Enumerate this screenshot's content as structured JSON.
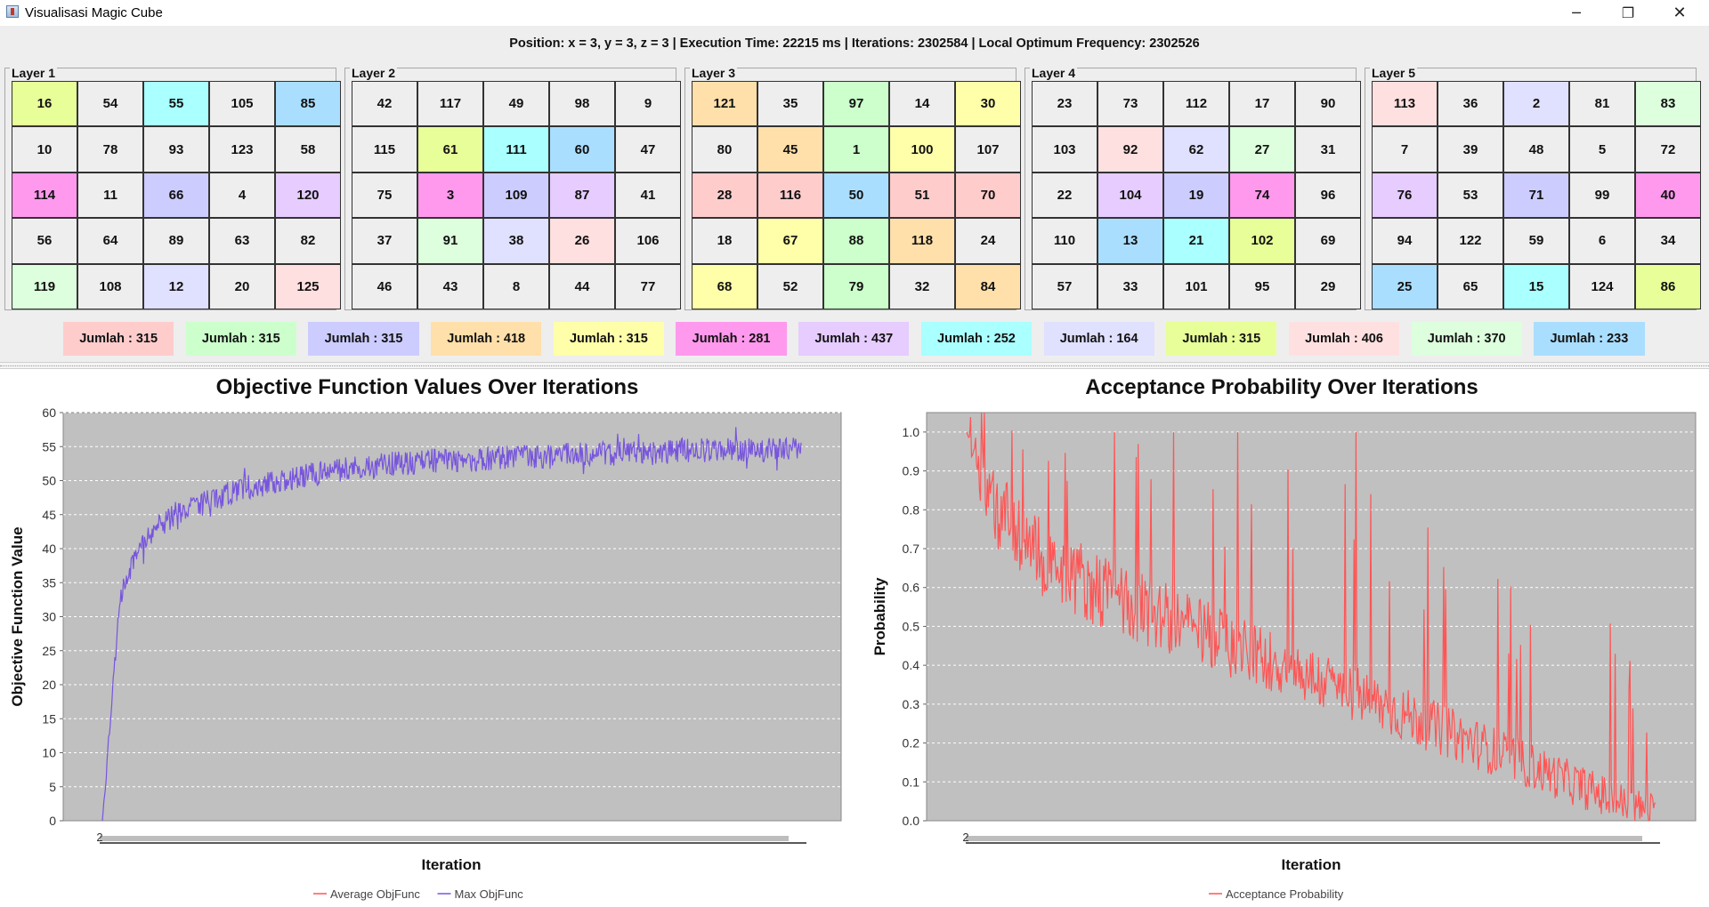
{
  "window": {
    "title": "Visualisasi Magic Cube",
    "minimize_icon": "─",
    "maximize_icon": "❐",
    "close_icon": "✕"
  },
  "status": {
    "text": "Position: x = 3, y = 3, z = 3 | Execution Time: 22215 ms | Iterations: 2302584 | Local Optimum Frequency: 2302526"
  },
  "palette": {
    "gray": "#eeeeee",
    "yellow_green": "#e8ff99",
    "cyan": "#aaffff",
    "sky": "#aadeff",
    "magenta": "#ff99ee",
    "lavender": "#ccccff",
    "violet": "#e6ccff",
    "pale_green": "#ddffdd",
    "pink": "#ffe0e0",
    "yellow": "#ffffaa",
    "orange": "#ffe0aa",
    "green": "#ccffcc",
    "red": "#ffcccc"
  },
  "layers": [
    {
      "title": "Layer 1",
      "cells": [
        {
          "v": "16",
          "c": "#e8ff99"
        },
        {
          "v": "54",
          "c": "#eeeeee"
        },
        {
          "v": "55",
          "c": "#aaffff"
        },
        {
          "v": "105",
          "c": "#eeeeee"
        },
        {
          "v": "85",
          "c": "#aadeff"
        },
        {
          "v": "10",
          "c": "#eeeeee"
        },
        {
          "v": "78",
          "c": "#eeeeee"
        },
        {
          "v": "93",
          "c": "#eeeeee"
        },
        {
          "v": "123",
          "c": "#eeeeee"
        },
        {
          "v": "58",
          "c": "#eeeeee"
        },
        {
          "v": "114",
          "c": "#ff99ee"
        },
        {
          "v": "11",
          "c": "#eeeeee"
        },
        {
          "v": "66",
          "c": "#ccccff"
        },
        {
          "v": "4",
          "c": "#eeeeee"
        },
        {
          "v": "120",
          "c": "#e6ccff"
        },
        {
          "v": "56",
          "c": "#eeeeee"
        },
        {
          "v": "64",
          "c": "#eeeeee"
        },
        {
          "v": "89",
          "c": "#eeeeee"
        },
        {
          "v": "63",
          "c": "#eeeeee"
        },
        {
          "v": "82",
          "c": "#eeeeee"
        },
        {
          "v": "119",
          "c": "#ddffdd"
        },
        {
          "v": "108",
          "c": "#eeeeee"
        },
        {
          "v": "12",
          "c": "#e0e0ff"
        },
        {
          "v": "20",
          "c": "#eeeeee"
        },
        {
          "v": "125",
          "c": "#ffe0e0"
        }
      ]
    },
    {
      "title": "Layer 2",
      "cells": [
        {
          "v": "42",
          "c": "#eeeeee"
        },
        {
          "v": "117",
          "c": "#eeeeee"
        },
        {
          "v": "49",
          "c": "#eeeeee"
        },
        {
          "v": "98",
          "c": "#eeeeee"
        },
        {
          "v": "9",
          "c": "#eeeeee"
        },
        {
          "v": "115",
          "c": "#eeeeee"
        },
        {
          "v": "61",
          "c": "#e8ff99"
        },
        {
          "v": "111",
          "c": "#aaffff"
        },
        {
          "v": "60",
          "c": "#aadeff"
        },
        {
          "v": "47",
          "c": "#eeeeee"
        },
        {
          "v": "75",
          "c": "#eeeeee"
        },
        {
          "v": "3",
          "c": "#ff99ee"
        },
        {
          "v": "109",
          "c": "#ccccff"
        },
        {
          "v": "87",
          "c": "#e6ccff"
        },
        {
          "v": "41",
          "c": "#eeeeee"
        },
        {
          "v": "37",
          "c": "#eeeeee"
        },
        {
          "v": "91",
          "c": "#ddffdd"
        },
        {
          "v": "38",
          "c": "#e0e0ff"
        },
        {
          "v": "26",
          "c": "#ffe0e0"
        },
        {
          "v": "106",
          "c": "#eeeeee"
        },
        {
          "v": "46",
          "c": "#eeeeee"
        },
        {
          "v": "43",
          "c": "#eeeeee"
        },
        {
          "v": "8",
          "c": "#eeeeee"
        },
        {
          "v": "44",
          "c": "#eeeeee"
        },
        {
          "v": "77",
          "c": "#eeeeee"
        }
      ]
    },
    {
      "title": "Layer 3",
      "cells": [
        {
          "v": "121",
          "c": "#ffe0aa"
        },
        {
          "v": "35",
          "c": "#eeeeee"
        },
        {
          "v": "97",
          "c": "#ccffcc"
        },
        {
          "v": "14",
          "c": "#eeeeee"
        },
        {
          "v": "30",
          "c": "#ffffaa"
        },
        {
          "v": "80",
          "c": "#eeeeee"
        },
        {
          "v": "45",
          "c": "#ffe0aa"
        },
        {
          "v": "1",
          "c": "#ccffcc"
        },
        {
          "v": "100",
          "c": "#ffffaa"
        },
        {
          "v": "107",
          "c": "#eeeeee"
        },
        {
          "v": "28",
          "c": "#ffcccc"
        },
        {
          "v": "116",
          "c": "#ffcccc"
        },
        {
          "v": "50",
          "c": "#aadeff"
        },
        {
          "v": "51",
          "c": "#ffcccc"
        },
        {
          "v": "70",
          "c": "#ffcccc"
        },
        {
          "v": "18",
          "c": "#eeeeee"
        },
        {
          "v": "67",
          "c": "#ffffaa"
        },
        {
          "v": "88",
          "c": "#ccffcc"
        },
        {
          "v": "118",
          "c": "#ffe0aa"
        },
        {
          "v": "24",
          "c": "#eeeeee"
        },
        {
          "v": "68",
          "c": "#ffffaa"
        },
        {
          "v": "52",
          "c": "#eeeeee"
        },
        {
          "v": "79",
          "c": "#ccffcc"
        },
        {
          "v": "32",
          "c": "#eeeeee"
        },
        {
          "v": "84",
          "c": "#ffe0aa"
        }
      ]
    },
    {
      "title": "Layer 4",
      "cells": [
        {
          "v": "23",
          "c": "#eeeeee"
        },
        {
          "v": "73",
          "c": "#eeeeee"
        },
        {
          "v": "112",
          "c": "#eeeeee"
        },
        {
          "v": "17",
          "c": "#eeeeee"
        },
        {
          "v": "90",
          "c": "#eeeeee"
        },
        {
          "v": "103",
          "c": "#eeeeee"
        },
        {
          "v": "92",
          "c": "#ffe0e0"
        },
        {
          "v": "62",
          "c": "#e0e0ff"
        },
        {
          "v": "27",
          "c": "#ddffdd"
        },
        {
          "v": "31",
          "c": "#eeeeee"
        },
        {
          "v": "22",
          "c": "#eeeeee"
        },
        {
          "v": "104",
          "c": "#e6ccff"
        },
        {
          "v": "19",
          "c": "#ccccff"
        },
        {
          "v": "74",
          "c": "#ff99ee"
        },
        {
          "v": "96",
          "c": "#eeeeee"
        },
        {
          "v": "110",
          "c": "#eeeeee"
        },
        {
          "v": "13",
          "c": "#aadeff"
        },
        {
          "v": "21",
          "c": "#aaffff"
        },
        {
          "v": "102",
          "c": "#e8ff99"
        },
        {
          "v": "69",
          "c": "#eeeeee"
        },
        {
          "v": "57",
          "c": "#eeeeee"
        },
        {
          "v": "33",
          "c": "#eeeeee"
        },
        {
          "v": "101",
          "c": "#eeeeee"
        },
        {
          "v": "95",
          "c": "#eeeeee"
        },
        {
          "v": "29",
          "c": "#eeeeee"
        }
      ]
    },
    {
      "title": "Layer 5",
      "cells": [
        {
          "v": "113",
          "c": "#ffe0e0"
        },
        {
          "v": "36",
          "c": "#eeeeee"
        },
        {
          "v": "2",
          "c": "#e0e0ff"
        },
        {
          "v": "81",
          "c": "#eeeeee"
        },
        {
          "v": "83",
          "c": "#ddffdd"
        },
        {
          "v": "7",
          "c": "#eeeeee"
        },
        {
          "v": "39",
          "c": "#eeeeee"
        },
        {
          "v": "48",
          "c": "#eeeeee"
        },
        {
          "v": "5",
          "c": "#eeeeee"
        },
        {
          "v": "72",
          "c": "#eeeeee"
        },
        {
          "v": "76",
          "c": "#e6ccff"
        },
        {
          "v": "53",
          "c": "#eeeeee"
        },
        {
          "v": "71",
          "c": "#ccccff"
        },
        {
          "v": "99",
          "c": "#eeeeee"
        },
        {
          "v": "40",
          "c": "#ff99ee"
        },
        {
          "v": "94",
          "c": "#eeeeee"
        },
        {
          "v": "122",
          "c": "#eeeeee"
        },
        {
          "v": "59",
          "c": "#eeeeee"
        },
        {
          "v": "6",
          "c": "#eeeeee"
        },
        {
          "v": "34",
          "c": "#eeeeee"
        },
        {
          "v": "25",
          "c": "#aadeff"
        },
        {
          "v": "65",
          "c": "#eeeeee"
        },
        {
          "v": "15",
          "c": "#aaffff"
        },
        {
          "v": "124",
          "c": "#eeeeee"
        },
        {
          "v": "86",
          "c": "#e8ff99"
        }
      ]
    }
  ],
  "sums": [
    {
      "label": "Jumlah : 315",
      "c": "#ffcccc"
    },
    {
      "label": "Jumlah : 315",
      "c": "#ccffcc"
    },
    {
      "label": "Jumlah : 315",
      "c": "#ccccff"
    },
    {
      "label": "Jumlah : 418",
      "c": "#ffe0aa"
    },
    {
      "label": "Jumlah : 315",
      "c": "#ffffaa"
    },
    {
      "label": "Jumlah : 281",
      "c": "#ff99ee"
    },
    {
      "label": "Jumlah : 437",
      "c": "#e6ccff"
    },
    {
      "label": "Jumlah : 252",
      "c": "#aaffff"
    },
    {
      "label": "Jumlah : 164",
      "c": "#e0e0ff"
    },
    {
      "label": "Jumlah : 315",
      "c": "#e8ff99"
    },
    {
      "label": "Jumlah : 406",
      "c": "#ffe0e0"
    },
    {
      "label": "Jumlah : 370",
      "c": "#ddffdd"
    },
    {
      "label": "Jumlah : 233",
      "c": "#aadeff"
    }
  ],
  "chart_data": [
    {
      "type": "line",
      "title": "Objective Function Values Over Iterations",
      "xlabel": "Iteration",
      "ylabel": "Objective Function Value",
      "x_tick_label": "2",
      "ylim": [
        0,
        60
      ],
      "yticks": [
        0,
        5,
        10,
        15,
        20,
        25,
        30,
        35,
        40,
        45,
        50,
        55,
        60
      ],
      "grid": true,
      "plot_background": "#c0c0c0",
      "legend_position": "bottom",
      "series": [
        {
          "name": "Average ObjFunc",
          "color": "#ff5555",
          "values": []
        },
        {
          "name": "Max ObjFunc",
          "color": "#7755dd",
          "values": [
            0,
            33,
            40,
            43,
            45,
            46,
            47,
            48,
            49,
            49.5,
            50,
            50.5,
            51,
            51.5,
            52,
            52,
            52.5,
            52.5,
            53,
            53,
            53,
            53,
            53.5,
            53.5,
            53.5,
            53.5,
            54,
            54,
            54,
            54,
            54,
            54,
            54.5,
            54.5,
            54.5,
            54.5,
            54.5,
            54.5,
            54.5,
            54.5
          ]
        }
      ]
    },
    {
      "type": "line",
      "title": "Acceptance Probability Over Iterations",
      "xlabel": "Iteration",
      "ylabel": "Probability",
      "x_tick_label": "2",
      "ylim": [
        0,
        1.05
      ],
      "yticks": [
        "0.0",
        "0.1",
        "0.2",
        "0.3",
        "0.4",
        "0.5",
        "0.6",
        "0.7",
        "0.8",
        "0.9",
        "1.0"
      ],
      "grid": true,
      "plot_background": "#c0c0c0",
      "legend_position": "bottom",
      "series": [
        {
          "name": "Acceptance Probability",
          "color": "#ff5555",
          "values": [
            1.0,
            0.8,
            0.72,
            0.66,
            0.62,
            0.58,
            0.55,
            0.52,
            0.49,
            0.46,
            0.43,
            0.4,
            0.37,
            0.34,
            0.31,
            0.28,
            0.25,
            0.22,
            0.19,
            0.16,
            0.13,
            0.1,
            0.07,
            0.04,
            0.02
          ]
        }
      ]
    }
  ]
}
